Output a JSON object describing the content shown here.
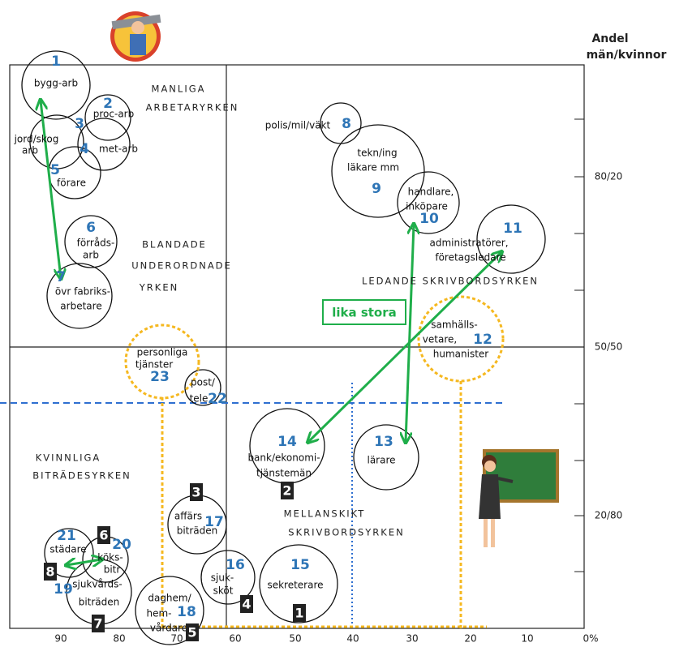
{
  "axis": {
    "title": [
      "Andel",
      "män/kvinnor"
    ],
    "x_labels": [
      "90",
      "80",
      "70",
      "60",
      "50",
      "40",
      "30",
      "20",
      "10",
      "0%"
    ],
    "y_labels": [
      "80/20",
      "50/50",
      "20/80"
    ]
  },
  "regions": [
    "MANLIGA",
    "ARBETARYRKEN",
    "BLANDADE",
    "UNDERORDNADE",
    "YRKEN",
    "LEDANDE SKRIVBORDSYRKEN",
    "KVINNLIGA",
    "BITRÄDESYRKEN",
    "MELLANSKIKT",
    "SKRIVBORDSYRKEN"
  ],
  "nodes": [
    {
      "number": "1",
      "lines": [
        "bygg-arb"
      ]
    },
    {
      "number": "2",
      "lines": [
        "proc-arb"
      ]
    },
    {
      "number": "3",
      "lines": [
        "jord/skog",
        "arb"
      ]
    },
    {
      "number": "4",
      "lines": [
        "met-arb"
      ]
    },
    {
      "number": "5",
      "lines": [
        "förare"
      ]
    },
    {
      "number": "6",
      "lines": [
        "förråds-",
        "arb"
      ]
    },
    {
      "number": "7",
      "lines": [
        "övr fabriks-",
        "arbetare"
      ]
    },
    {
      "number": "8",
      "lines": [
        "polis/mil/väkt"
      ]
    },
    {
      "number": "9",
      "lines": [
        "tekn/ing",
        "läkare mm"
      ]
    },
    {
      "number": "10",
      "lines": [
        "handlare,",
        "inköpare"
      ]
    },
    {
      "number": "11",
      "lines": [
        "administratörer,",
        "företagsledare"
      ]
    },
    {
      "number": "12",
      "lines": [
        "samhälls-",
        "vetare,",
        "humanister"
      ]
    },
    {
      "number": "13",
      "lines": [
        "lärare"
      ]
    },
    {
      "number": "14",
      "lines": [
        "bank/ekonomi-",
        "tjänstemän"
      ]
    },
    {
      "number": "15",
      "lines": [
        "sekreterare"
      ]
    },
    {
      "number": "16",
      "lines": [
        "sjuk-",
        "sköt"
      ]
    },
    {
      "number": "17",
      "lines": [
        "affärs",
        "biträden"
      ]
    },
    {
      "number": "18",
      "lines": [
        "daghem/",
        "hem-",
        "vårdare"
      ]
    },
    {
      "number": "19",
      "lines": [
        "sjukvårds-",
        "biträden"
      ]
    },
    {
      "number": "20",
      "lines": [
        "köks-",
        "bitr"
      ]
    },
    {
      "number": "21",
      "lines": [
        "städare"
      ]
    },
    {
      "number": "22",
      "lines": [
        "post/",
        "tele"
      ]
    },
    {
      "number": "23",
      "lines": [
        "personliga",
        "tjänster"
      ]
    }
  ],
  "markers": [
    "3",
    "2",
    "4",
    "1",
    "5",
    "6",
    "8",
    "7"
  ],
  "callout": "lika stora"
}
